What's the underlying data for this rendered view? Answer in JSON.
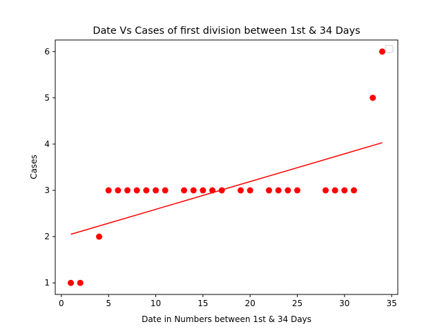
{
  "chart_data": {
    "type": "scatter",
    "title": "Date Vs Cases of first division between 1st & 34 Days",
    "xlabel": "Date in Numbers between 1st & 34 Days",
    "ylabel": "Cases",
    "xlim": [
      -0.65,
      35.65
    ],
    "ylim": [
      0.75,
      6.25
    ],
    "xticks": [
      0,
      5,
      10,
      15,
      20,
      25,
      30,
      35
    ],
    "yticks": [
      1,
      2,
      3,
      4,
      5,
      6
    ],
    "grid": false,
    "legend": "top-right",
    "series": [
      {
        "kind": "points",
        "color": "#ff0000",
        "x": [
          1,
          2,
          4,
          5,
          6,
          7,
          8,
          9,
          10,
          11,
          13,
          14,
          15,
          16,
          17,
          19,
          20,
          22,
          23,
          24,
          25,
          28,
          29,
          30,
          31,
          33,
          34
        ],
        "y": [
          1,
          1,
          2,
          3,
          3,
          3,
          3,
          3,
          3,
          3,
          3,
          3,
          3,
          3,
          3,
          3,
          3,
          3,
          3,
          3,
          3,
          3,
          3,
          3,
          3,
          5,
          6
        ]
      },
      {
        "kind": "trend-line",
        "color": "#ff0000",
        "x": [
          1,
          34
        ],
        "y": [
          2.05,
          4.03
        ]
      }
    ]
  }
}
